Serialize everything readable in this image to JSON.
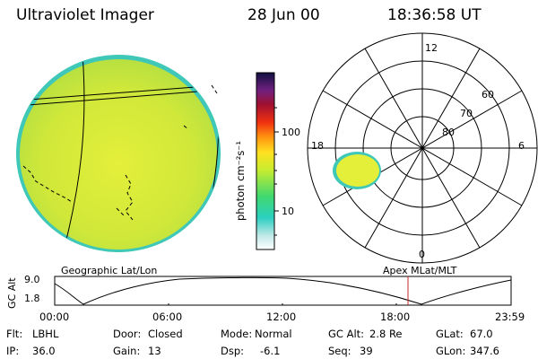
{
  "header": {
    "instrument": "Ultraviolet Imager",
    "date": "28 Jun 00",
    "time": "18:36:58 UT"
  },
  "colorbar": {
    "unit_label": "photon cm⁻²s⁻¹",
    "ticks": [
      "100",
      "10"
    ],
    "scale": "log"
  },
  "polar": {
    "hour_labels": [
      "12",
      "18",
      "6",
      "0"
    ],
    "lat_labels": [
      "60",
      "70",
      "80"
    ]
  },
  "panel_labels": {
    "left": "Geographic Lat/Lon",
    "right": "Apex MLat/MLT"
  },
  "alt_plot": {
    "ylabel": "GC Alt",
    "y_ticks": [
      "9.0",
      "1.8"
    ],
    "x_ticks": [
      "00:00",
      "06:00",
      "12:00",
      "18:00",
      "23:59"
    ],
    "current_time_marker": "18:37"
  },
  "footer": {
    "row1": [
      {
        "label": "Flt:",
        "value": "LBHL"
      },
      {
        "label": "Door:",
        "value": "Closed"
      },
      {
        "label": "Mode:",
        "value": "Normal"
      },
      {
        "label": "GC Alt:",
        "value": "2.8 Re"
      },
      {
        "label": "GLat:",
        "value": "67.0"
      }
    ],
    "row2": [
      {
        "label": "IP:",
        "value": "36.0"
      },
      {
        "label": "Gain:",
        "value": "13"
      },
      {
        "label": "Dsp:",
        "value": "-6.1"
      },
      {
        "label": "Seq:",
        "value": "39"
      },
      {
        "label": "GLon:",
        "value": "347.6"
      }
    ]
  },
  "colors": {
    "earth_fill": "#d6ec38",
    "earth_edge": "#36c9b0",
    "aurora_spot": "#e8f23c",
    "marker": "#c0282a"
  }
}
